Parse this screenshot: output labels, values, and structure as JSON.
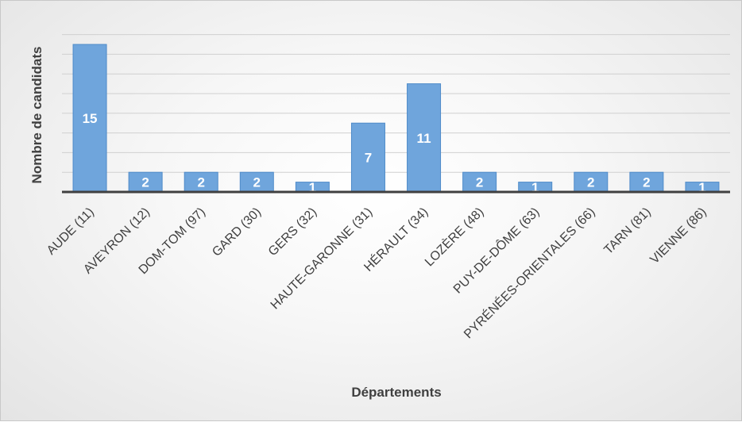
{
  "chart_data": {
    "type": "bar",
    "xlabel": "Départements",
    "ylabel": "Nombre de candidats",
    "categories": [
      "AUDE (11)",
      "AVEYRON (12)",
      "DOM-TOM (97)",
      "GARD (30)",
      "GERS (32)",
      "HAUTE-GARONNE (31)",
      "HÉRAULT (34)",
      "LOZÈRE (48)",
      "PUY-DE-DÔME (63)",
      "PYRÉNÉES-ORIENTALES (66)",
      "TARN (81)",
      "VIENNE (86)"
    ],
    "values": [
      15,
      2,
      2,
      2,
      1,
      7,
      11,
      2,
      1,
      2,
      2,
      1
    ],
    "data_labels": [
      "15",
      "2",
      "2",
      "2",
      "1",
      "7",
      "11",
      "2",
      "1",
      "2",
      "2",
      "1"
    ],
    "ylim": [
      0,
      15
    ],
    "grid": true,
    "colors": {
      "bar": "#6fa5dc",
      "bar_edge": "#4f8bc9",
      "label": "#ffffff",
      "axis": "#404040",
      "grid": "#d0d0d0"
    }
  }
}
